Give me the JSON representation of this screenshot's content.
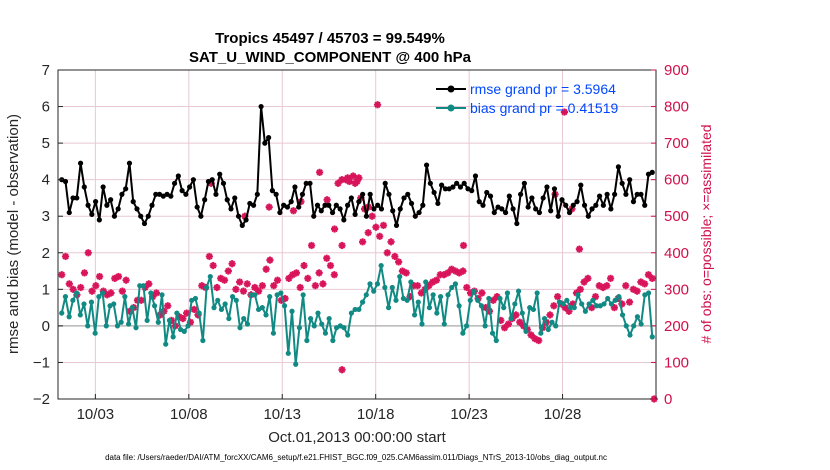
{
  "chart_data": {
    "type": "line",
    "title_line1": "Tropics 45497 / 45703 = 99.549%",
    "title_line2": "SAT_U_WIND_COMPONENT @ 400 hPa",
    "xlabel": "Oct.01,2013 00:00:00 start",
    "ylabel_left": "rmse and bias (model - observation)",
    "ylabel_right": "# of obs: o=possible; ×=assimilated",
    "footer": "data file: /Users/raeder/DAI/ATM_forcXX/CAM6_setup/f.e21.FHIST_BGC.f09_025.CAM6assim.011/Diags_NTrS_2013-10/obs_diag_output.nc",
    "xlim": [
      1,
      33
    ],
    "ylim_left": [
      -2,
      7
    ],
    "ylim_right": [
      0,
      900
    ],
    "yticks_left": [
      "-2",
      "-1",
      "0",
      "1",
      "2",
      "3",
      "4",
      "5",
      "6",
      "7"
    ],
    "yticks_right": [
      "0",
      "100",
      "200",
      "300",
      "400",
      "500",
      "600",
      "700",
      "800",
      "900"
    ],
    "xticks": [
      {
        "day": 3,
        "label": "10/03"
      },
      {
        "day": 8,
        "label": "10/08"
      },
      {
        "day": 13,
        "label": "10/13"
      },
      {
        "day": 18,
        "label": "10/18"
      },
      {
        "day": 23,
        "label": "10/23"
      },
      {
        "day": 28,
        "label": "10/28"
      }
    ],
    "colors": {
      "rmse": "#000000",
      "bias": "#128a84",
      "obs": "#d8145a",
      "grid": "#e8c8d4",
      "zero": "#b8b8b8"
    },
    "series": [
      {
        "name": "rmse",
        "legend": "rmse grand pr = 3.5964",
        "values": [
          4.0,
          3.95,
          3.1,
          3.5,
          3.5,
          4.45,
          3.8,
          3.3,
          3.05,
          3.4,
          2.9,
          3.8,
          3.3,
          3.45,
          3.0,
          3.2,
          3.6,
          3.75,
          4.45,
          3.4,
          3.2,
          3.0,
          2.8,
          3.0,
          3.3,
          3.6,
          3.6,
          3.55,
          3.6,
          3.55,
          3.9,
          4.1,
          3.7,
          3.6,
          3.8,
          4.0,
          3.25,
          3.0,
          3.45,
          3.95,
          4.0,
          3.6,
          4.15,
          3.9,
          3.45,
          3.2,
          3.5,
          3.0,
          2.75,
          2.9,
          3.35,
          3.3,
          3.6,
          6.0,
          5.0,
          5.15,
          3.7,
          3.6,
          3.1,
          3.3,
          3.25,
          3.4,
          3.8,
          3.25,
          3.6,
          3.9,
          3.9,
          3.0,
          3.3,
          3.15,
          3.3,
          3.3,
          3.1,
          3.3,
          3.2,
          2.9,
          3.3,
          3.5,
          3.05,
          3.4,
          3.6,
          3.0,
          3.6,
          3.2,
          3.3,
          3.2,
          3.9,
          3.6,
          3.15,
          2.75,
          3.2,
          3.5,
          3.6,
          3.35,
          3.0,
          3.1,
          3.3,
          4.4,
          3.9,
          3.65,
          3.35,
          3.85,
          3.75,
          3.75,
          3.8,
          3.9,
          3.8,
          3.9,
          3.75,
          3.7,
          4.1,
          3.4,
          3.3,
          3.65,
          3.55,
          3.1,
          3.25,
          3.2,
          3.1,
          3.55,
          3.2,
          2.8,
          3.6,
          3.9,
          3.25,
          3.5,
          3.2,
          3.1,
          3.5,
          3.8,
          3.15,
          3.75,
          3.0,
          3.45,
          3.3,
          3.1,
          3.3,
          3.4,
          3.85,
          3.3,
          3.0,
          3.2,
          3.3,
          3.55,
          3.3,
          3.6,
          3.2,
          3.6,
          4.35,
          3.9,
          3.6,
          4.0,
          3.4,
          3.6,
          3.6,
          3.3,
          4.15,
          4.2
        ]
      },
      {
        "name": "bias",
        "legend": "bias grand pr = 0.41519",
        "values": [
          0.35,
          0.8,
          0.25,
          0.7,
          0.9,
          0.3,
          0.6,
          0.0,
          0.65,
          -0.2,
          0.8,
          0.9,
          0.0,
          0.55,
          0.6,
          0.0,
          0.1,
          0.8,
          0.05,
          0.5,
          -0.05,
          1.1,
          1.1,
          0.15,
          0.9,
          0.55,
          0.1,
          0.85,
          -0.5,
          0.15,
          -0.3,
          0.35,
          -0.1,
          -0.15,
          0.0,
          0.7,
          0.75,
          0.35,
          -0.4,
          1.05,
          1.35,
          0.5,
          0.7,
          0.45,
          0.6,
          0.2,
          0.8,
          0.7,
          -0.05,
          0.2,
          0.05,
          0.85,
          0.85,
          0.45,
          0.5,
          0.3,
          0.8,
          -0.2,
          0.85,
          0.9,
          0.55,
          -0.75,
          0.4,
          -1.05,
          -0.05,
          0.85,
          -0.4,
          0.2,
          0.0,
          0.35,
          0.05,
          -0.2,
          0.2,
          -0.4,
          -0.05,
          0.0,
          -0.05,
          -0.25,
          0.35,
          0.45,
          0.45,
          0.65,
          0.85,
          1.15,
          0.95,
          1.15,
          1.65,
          1.05,
          0.5,
          1.05,
          0.7,
          1.35,
          0.75,
          0.7,
          1.2,
          0.3,
          0.65,
          0.05,
          1.2,
          0.5,
          0.85,
          0.35,
          0.8,
          0.05,
          0.85,
          1.05,
          1.15,
          0.55,
          -0.2,
          0.0,
          0.7,
          0.95,
          0.7,
          0.55,
          0.0,
          0.75,
          -0.2,
          -0.4,
          0.75,
          0.5,
          0.9,
          0.2,
          0.6,
          0.95,
          0.35,
          -0.15,
          0.5,
          0.45,
          0.9,
          -0.2,
          0.2,
          -0.1,
          0.1,
          0.0,
          0.65,
          0.6,
          0.7,
          0.5,
          0.5,
          0.85,
          0.6,
          0.4,
          0.6,
          0.7,
          0.55,
          0.55,
          0.6,
          0.75,
          0.6,
          0.7,
          0.8,
          0.3,
          0.0,
          -0.25,
          0.0,
          0.25,
          0.05,
          0.85,
          0.9,
          -0.3
        ]
      },
      {
        "name": "obs_assimilated",
        "legend": "",
        "axis": "right",
        "values": [
          340,
          390,
          315,
          300,
          285,
          305,
          345,
          400,
          295,
          310,
          335,
          295,
          285,
          290,
          330,
          335,
          295,
          325,
          240,
          250,
          270,
          270,
          305,
          315,
          280,
          290,
          230,
          240,
          255,
          215,
          200,
          225,
          220,
          235,
          210,
          245,
          230,
          310,
          305,
          390,
          365,
          305,
          330,
          325,
          350,
          370,
          300,
          320,
          295,
          315,
          285,
          305,
          295,
          310,
          355,
          380,
          310,
          325,
          270,
          275,
          330,
          340,
          345,
          305,
          365,
          330,
          420,
          310,
          345,
          315,
          385,
          365,
          340,
          590,
          600,
          600,
          595,
          610,
          595,
          550,
          520,
          525,
          500,
          470,
          445,
          475,
          400,
          430,
          390,
          375,
          350,
          345,
          280,
          310,
          310,
          290,
          300,
          310,
          320,
          325,
          340,
          340,
          345,
          355,
          350,
          345,
          350,
          305,
          290,
          295,
          275,
          290,
          250,
          240,
          270,
          280,
          215,
          195,
          205,
          220,
          230,
          210,
          200,
          190,
          175,
          165,
          160,
          195,
          210,
          230,
          255,
          280,
          260,
          250,
          240,
          260,
          290,
          300,
          320,
          330,
          250,
          280,
          310,
          305,
          310,
          330,
          250,
          275,
          260,
          310,
          265,
          300,
          295,
          320,
          315,
          340,
          330
        ]
      }
    ],
    "obs_extra_points": [
      {
        "day": 9.2,
        "value": 590
      },
      {
        "day": 11.0,
        "value": 500
      },
      {
        "day": 12.3,
        "value": 525
      },
      {
        "day": 13.6,
        "value": 515
      },
      {
        "day": 14.0,
        "value": 540
      },
      {
        "day": 15.0,
        "value": 620
      },
      {
        "day": 15.4,
        "value": 545
      },
      {
        "day": 15.8,
        "value": 465
      },
      {
        "day": 16.2,
        "value": 420
      },
      {
        "day": 16.5,
        "value": 605
      },
      {
        "day": 16.9,
        "value": 590
      },
      {
        "day": 17.3,
        "value": 430
      },
      {
        "day": 17.6,
        "value": 455
      },
      {
        "day": 18.1,
        "value": 805
      },
      {
        "day": 16.2,
        "value": 80
      },
      {
        "day": 17.1,
        "value": 605
      },
      {
        "day": 22.7,
        "value": 420
      },
      {
        "day": 27.6,
        "value": 560
      },
      {
        "day": 28.1,
        "value": 785
      },
      {
        "day": 28.5,
        "value": 520
      },
      {
        "day": 28.9,
        "value": 410
      },
      {
        "day": 32.9,
        "value": 0
      }
    ]
  }
}
